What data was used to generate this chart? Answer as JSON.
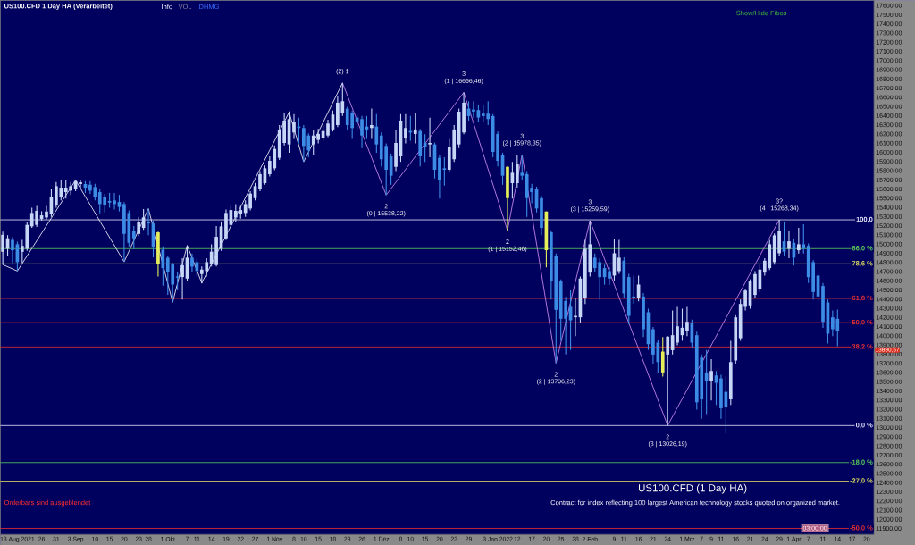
{
  "chart_data": {
    "type": "candlestick",
    "title": "US100.CFD 1 Day HA (Verarbeitet)",
    "subtitle": "US100.CFD (1 Day HA)",
    "categories": [
      null,
      null,
      null,
      "13 Aug 2021",
      null,
      null,
      null,
      null,
      "26",
      null,
      null,
      "31",
      null,
      null,
      null,
      "3 Sep",
      null,
      null,
      null,
      "10",
      null,
      null,
      "15",
      null,
      null,
      "20",
      null,
      null,
      "23",
      null,
      "28",
      null,
      null,
      null,
      "1 Okt",
      null,
      null,
      null,
      "7",
      null,
      "11",
      null,
      null,
      "14",
      null,
      null,
      "19",
      null,
      null,
      "22",
      null,
      null,
      "27",
      null,
      null,
      null,
      "1 Nov",
      null,
      null,
      null,
      "8",
      null,
      "10",
      null,
      null,
      "15",
      null,
      null,
      "18",
      null,
      null,
      "23",
      null,
      null,
      "26",
      null,
      null,
      null,
      "1 Dez",
      null,
      null,
      null,
      "8",
      null,
      "10",
      null,
      null,
      "15",
      null,
      null,
      "20",
      null,
      null,
      "23",
      null,
      null,
      "29",
      null,
      null,
      null,
      null,
      null,
      "3 Jan 2022",
      null,
      null,
      null,
      "12",
      null,
      null,
      "17",
      null,
      null,
      "20",
      null,
      null,
      "25",
      null,
      null,
      "28",
      null,
      null,
      "2 Feb",
      null,
      null,
      null,
      null,
      "9",
      null,
      "11",
      null,
      null,
      "16",
      null,
      null,
      "21",
      null,
      null,
      "24",
      null,
      null,
      null,
      "1 Mrz",
      null,
      null,
      "7",
      null,
      "9",
      null,
      "11",
      null,
      null,
      "16",
      null,
      null,
      "21",
      null,
      null,
      "24",
      null,
      null,
      "29",
      null,
      null,
      "1 Apr",
      null,
      null,
      "7",
      null,
      null,
      "11",
      null,
      null,
      "14",
      null,
      null,
      "17",
      null,
      null,
      "20",
      null
    ],
    "ohlc": [
      [
        14920,
        15140,
        14780,
        15105
      ],
      [
        14953,
        15100,
        14870,
        15067
      ],
      [
        15050,
        15080,
        14800,
        14937
      ],
      [
        15002,
        15030,
        14713,
        14807
      ],
      [
        14920,
        15050,
        14800,
        14985
      ],
      [
        14953,
        15250,
        14930,
        15213
      ],
      [
        15197,
        15400,
        15180,
        15343
      ],
      [
        15213,
        15420,
        15190,
        15366
      ],
      [
        15278,
        15360,
        15260,
        15317
      ],
      [
        15294,
        15420,
        15270,
        15359
      ],
      [
        15327,
        15600,
        15300,
        15521
      ],
      [
        15424,
        15680,
        15400,
        15635
      ],
      [
        15522,
        15700,
        15480,
        15619
      ],
      [
        15570,
        15700,
        15500,
        15619
      ],
      [
        15586,
        15680,
        15540,
        15635
      ],
      [
        15609,
        15697,
        15580,
        15690
      ],
      [
        15658,
        15700,
        15600,
        15677
      ],
      [
        15658,
        15690,
        15560,
        15619
      ],
      [
        15651,
        15690,
        15550,
        15586
      ],
      [
        15625,
        15660,
        15480,
        15521
      ],
      [
        15570,
        15600,
        15340,
        15440
      ],
      [
        15521,
        15550,
        15350,
        15430
      ],
      [
        15473,
        15560,
        15400,
        15456
      ],
      [
        15480,
        15560,
        15380,
        15440
      ],
      [
        15463,
        15540,
        15360,
        15408
      ],
      [
        15440,
        15460,
        14810,
        15115
      ],
      [
        15343,
        15370,
        14980,
        15018
      ],
      [
        15148,
        15200,
        14950,
        15067
      ],
      [
        15115,
        15300,
        15090,
        15245
      ],
      [
        15180,
        15385,
        15160,
        15294
      ],
      [
        15245,
        15385,
        15100,
        15229
      ],
      [
        15229,
        15260,
        14860,
        14969
      ],
      [
        15132,
        15140,
        14650,
        14790
      ],
      [
        14943,
        14980,
        14550,
        14742
      ],
      [
        14855,
        14880,
        14450,
        14703
      ],
      [
        14781,
        14800,
        14372,
        14563
      ],
      [
        14651,
        14700,
        14500,
        14638
      ],
      [
        14645,
        14850,
        14400,
        14774
      ],
      [
        14628,
        14986,
        14600,
        14856
      ],
      [
        14856,
        14900,
        14700,
        14758
      ],
      [
        14807,
        14850,
        14650,
        14710
      ],
      [
        14677,
        14760,
        14576,
        14726
      ],
      [
        14710,
        14850,
        14650,
        14807
      ],
      [
        14791,
        15000,
        14760,
        14921
      ],
      [
        14775,
        15200,
        14760,
        15083
      ],
      [
        14953,
        15250,
        14930,
        15197
      ],
      [
        15067,
        15380,
        15050,
        15343
      ],
      [
        15213,
        15420,
        15190,
        15375
      ],
      [
        15294,
        15440,
        15250,
        15366
      ],
      [
        15327,
        15420,
        15280,
        15375
      ],
      [
        15343,
        15480,
        15300,
        15440
      ],
      [
        15392,
        15580,
        15370,
        15554
      ],
      [
        15505,
        15670,
        15480,
        15635
      ],
      [
        15603,
        15800,
        15580,
        15765
      ],
      [
        15668,
        15860,
        15650,
        15830
      ],
      [
        15765,
        15960,
        15740,
        15911
      ],
      [
        15830,
        16080,
        15810,
        16041
      ],
      [
        15944,
        16300,
        15920,
        16252
      ],
      [
        16106,
        16438,
        16080,
        16350
      ],
      [
        16090,
        16450,
        16000,
        16366
      ],
      [
        16220,
        16420,
        16150,
        16334
      ],
      [
        16285,
        16380,
        16100,
        16269
      ],
      [
        16269,
        16300,
        15902,
        16074
      ],
      [
        16187,
        16210,
        15950,
        16025
      ],
      [
        16090,
        16250,
        15970,
        16187
      ],
      [
        16139,
        16260,
        16100,
        16204
      ],
      [
        16155,
        16290,
        16130,
        16236
      ],
      [
        16187,
        16360,
        16170,
        16317
      ],
      [
        16253,
        16460,
        16230,
        16415
      ],
      [
        16301,
        16620,
        16280,
        16545
      ],
      [
        16431,
        16760,
        16400,
        16561
      ],
      [
        16480,
        16500,
        16250,
        16301
      ],
      [
        16431,
        16460,
        16150,
        16269
      ],
      [
        16383,
        16420,
        16250,
        16334
      ],
      [
        16366,
        16400,
        16050,
        16187
      ],
      [
        16285,
        16400,
        16150,
        16253
      ],
      [
        16269,
        16480,
        16150,
        16301
      ],
      [
        16285,
        16420,
        16000,
        16090
      ],
      [
        16187,
        16220,
        15850,
        15928
      ],
      [
        16074,
        16100,
        15538.22,
        15814
      ],
      [
        15960,
        15990,
        15650,
        15749
      ],
      [
        15846,
        16250,
        15800,
        16106
      ],
      [
        15960,
        16420,
        15900,
        16350
      ],
      [
        16155,
        16420,
        16100,
        16269
      ],
      [
        16236,
        16400,
        16130,
        16220
      ],
      [
        16204,
        16430,
        16100,
        16253
      ],
      [
        16236,
        16260,
        15850,
        15960
      ],
      [
        16106,
        16200,
        15900,
        16058
      ],
      [
        16090,
        16380,
        15950,
        16106
      ],
      [
        16090,
        16110,
        15720,
        15814
      ],
      [
        15944,
        15970,
        15500,
        15700
      ],
      [
        15830,
        15950,
        15640,
        15814
      ],
      [
        15814,
        16150,
        15790,
        16058
      ],
      [
        15928,
        16300,
        15900,
        16253
      ],
      [
        16090,
        16480,
        16050,
        16447
      ],
      [
        16220,
        16656.46,
        16200,
        16545
      ],
      [
        16480,
        16560,
        16350,
        16399
      ],
      [
        16470,
        16560,
        16380,
        16448
      ],
      [
        16464,
        16520,
        16330,
        16383
      ],
      [
        16425,
        16520,
        16330,
        16399
      ],
      [
        16425,
        16560,
        16300,
        16366
      ],
      [
        16399,
        16420,
        15950,
        16009
      ],
      [
        16204,
        16230,
        15850,
        15911
      ],
      [
        15976,
        16000,
        15650,
        15749
      ],
      [
        15846,
        15850,
        15152.46,
        15505
      ],
      [
        15668,
        15900,
        15500,
        15781
      ],
      [
        15668,
        15980,
        15620,
        15879
      ],
      [
        15781,
        15978.35,
        15700,
        15749
      ],
      [
        15765,
        15800,
        15300,
        15505
      ],
      [
        15619,
        15660,
        15450,
        15570
      ],
      [
        15603,
        15630,
        15350,
        15392
      ],
      [
        15505,
        15530,
        15100,
        15180
      ],
      [
        15359,
        15359,
        14750,
        14937
      ],
      [
        15132,
        15150,
        14400,
        14596
      ],
      [
        14872,
        14900,
        13706.23,
        14287
      ],
      [
        14596,
        14620,
        13950,
        14190
      ],
      [
        14384,
        14430,
        13800,
        14190
      ],
      [
        14320,
        14500,
        13850,
        14173
      ],
      [
        14206,
        14420,
        14000,
        14222
      ],
      [
        14206,
        14650,
        14150,
        14628
      ],
      [
        14417,
        15050,
        14350,
        14953
      ],
      [
        14693,
        15259.59,
        14650,
        15002
      ],
      [
        14856,
        14900,
        14700,
        14742
      ],
      [
        14807,
        14850,
        14400,
        14644
      ],
      [
        14742,
        14780,
        14560,
        14644
      ],
      [
        14709,
        14750,
        14560,
        14628
      ],
      [
        14661,
        15060,
        14600,
        14904
      ],
      [
        14709,
        15050,
        14680,
        14856
      ],
      [
        14823,
        14860,
        14420,
        14466
      ],
      [
        14644,
        14680,
        14130,
        14222
      ],
      [
        14433,
        14660,
        14350,
        14417
      ],
      [
        14417,
        14660,
        14380,
        14563
      ],
      [
        14433,
        14470,
        13990,
        14076
      ],
      [
        14261,
        14300,
        13850,
        13913
      ],
      [
        14076,
        14100,
        13700,
        13800
      ],
      [
        13930,
        13960,
        13600,
        13718
      ],
      [
        13832,
        13990,
        13560,
        13605
      ],
      [
        13800,
        14000,
        13026.19,
        13995
      ],
      [
        13848,
        14280,
        13800,
        14011
      ],
      [
        13930,
        14320,
        13900,
        14108
      ],
      [
        14011,
        14300,
        13950,
        14092
      ],
      [
        14060,
        14320,
        14000,
        14157
      ],
      [
        14141,
        14180,
        13880,
        13930
      ],
      [
        14011,
        14050,
        13200,
        13280
      ],
      [
        13767,
        13800,
        13100,
        13312
      ],
      [
        13605,
        13850,
        13150,
        13507
      ],
      [
        13507,
        13750,
        13300,
        13621
      ],
      [
        13572,
        13620,
        13250,
        13491
      ],
      [
        13540,
        13580,
        13100,
        13215
      ],
      [
        13394,
        13560,
        12940,
        13231
      ],
      [
        13312,
        13950,
        13250,
        13718
      ],
      [
        13735,
        14230,
        13700,
        14206
      ],
      [
        13978,
        14400,
        13950,
        14352
      ],
      [
        14320,
        14520,
        14280,
        14498
      ],
      [
        14336,
        14620,
        14300,
        14596
      ],
      [
        14450,
        14710,
        14420,
        14677
      ],
      [
        14514,
        14780,
        14480,
        14726
      ],
      [
        14693,
        14850,
        14660,
        14823
      ],
      [
        14742,
        15050,
        14720,
        15002
      ],
      [
        14807,
        15120,
        14780,
        15099
      ],
      [
        14904,
        15268.34,
        14880,
        15148
      ],
      [
        15034,
        15250,
        14880,
        14921
      ],
      [
        14953,
        15150,
        14850,
        15034
      ],
      [
        15018,
        15060,
        14770,
        14856
      ],
      [
        14937,
        15180,
        14900,
        15002
      ],
      [
        15002,
        15220,
        14900,
        14953
      ],
      [
        14985,
        15010,
        14580,
        14644
      ],
      [
        14807,
        14830,
        14400,
        14482
      ],
      [
        14661,
        14690,
        14370,
        14433
      ],
      [
        14547,
        14580,
        14090,
        14157
      ],
      [
        14368,
        14400,
        13920,
        14027
      ],
      [
        14206,
        14280,
        14000,
        14076
      ],
      [
        14190,
        14290,
        13890,
        14060
      ],
      null,
      null,
      null,
      null,
      null,
      null,
      null
    ],
    "colors": [
      "#c6d6f6",
      "#c6d6f6",
      "#3c8ce6",
      "#3c8ce6",
      "#c6d6f6",
      "#c6d6f6",
      "#c6d6f6",
      "#c6d6f6",
      "#c6d6f6",
      "#c6d6f6",
      "#c6d6f6",
      "#c6d6f6",
      "#c6d6f6",
      "#c6d6f6",
      "#c6d6f6",
      "#c6d6f6",
      "#c6d6f6",
      "#3c8ce6",
      "#3c8ce6",
      "#3c8ce6",
      "#3c8ce6",
      "#3c8ce6",
      "#3c8ce6",
      "#3c8ce6",
      "#3c8ce6",
      "#3c8ce6",
      "#3c8ce6",
      "#3c8ce6",
      "#c6d6f6",
      "#c6d6f6",
      "#3c8ce6",
      "#3c8ce6",
      "#e6ee5a",
      "#3c8ce6",
      "#3c8ce6",
      "#3c8ce6",
      "#3c8ce6",
      "#c6d6f6",
      "#c6d6f6",
      "#3c8ce6",
      "#3c8ce6",
      "#c6d6f6",
      "#c6d6f6",
      "#c6d6f6",
      "#c6d6f6",
      "#c6d6f6",
      "#c6d6f6",
      "#c6d6f6",
      "#c6d6f6",
      "#c6d6f6",
      "#c6d6f6",
      "#c6d6f6",
      "#c6d6f6",
      "#c6d6f6",
      "#c6d6f6",
      "#c6d6f6",
      "#c6d6f6",
      "#c6d6f6",
      "#c6d6f6",
      "#c6d6f6",
      "#c6d6f6",
      "#3c8ce6",
      "#3c8ce6",
      "#3c8ce6",
      "#c6d6f6",
      "#c6d6f6",
      "#c6d6f6",
      "#c6d6f6",
      "#c6d6f6",
      "#c6d6f6",
      "#c6d6f6",
      "#3c8ce6",
      "#3c8ce6",
      "#3c8ce6",
      "#3c8ce6",
      "#3c8ce6",
      "#c6d6f6",
      "#3c8ce6",
      "#3c8ce6",
      "#3c8ce6",
      "#3c8ce6",
      "#c6d6f6",
      "#c6d6f6",
      "#c6d6f6",
      "#3c8ce6",
      "#c6d6f6",
      "#3c8ce6",
      "#3c8ce6",
      "#c6d6f6",
      "#3c8ce6",
      "#3c8ce6",
      "#3c8ce6",
      "#c6d6f6",
      "#c6d6f6",
      "#c6d6f6",
      "#c6d6f6",
      "#3c8ce6",
      "#3c8ce6",
      "#3c8ce6",
      "#3c8ce6",
      "#3c8ce6",
      "#3c8ce6",
      "#3c8ce6",
      "#3c8ce6",
      "#e6ee5a",
      "#c6d6f6",
      "#c6d6f6",
      "#3c8ce6",
      "#3c8ce6",
      "#3c8ce6",
      "#3c8ce6",
      "#3c8ce6",
      "#e6ee5a",
      "#3c8ce6",
      "#3c8ce6",
      "#3c8ce6",
      "#3c8ce6",
      "#3c8ce6",
      "#c6d6f6",
      "#c6d6f6",
      "#c6d6f6",
      "#c6d6f6",
      "#3c8ce6",
      "#3c8ce6",
      "#3c8ce6",
      "#3c8ce6",
      "#c6d6f6",
      "#c6d6f6",
      "#3c8ce6",
      "#3c8ce6",
      "#3c8ce6",
      "#c6d6f6",
      "#3c8ce6",
      "#3c8ce6",
      "#3c8ce6",
      "#3c8ce6",
      "#e6ee5a",
      "#c6d6f6",
      "#c6d6f6",
      "#c6d6f6",
      "#c6d6f6",
      "#c6d6f6",
      "#3c8ce6",
      "#3c8ce6",
      "#3c8ce6",
      "#3c8ce6",
      "#c6d6f6",
      "#3c8ce6",
      "#3c8ce6",
      "#3c8ce6",
      "#c6d6f6",
      "#c6d6f6",
      "#c6d6f6",
      "#c6d6f6",
      "#c6d6f6",
      "#c6d6f6",
      "#c6d6f6",
      "#c6d6f6",
      "#c6d6f6",
      "#c6d6f6",
      "#c6d6f6",
      "#3c8ce6",
      "#c6d6f6",
      "#3c8ce6",
      "#c6d6f6",
      "#3c8ce6",
      "#3c8ce6",
      "#3c8ce6",
      "#3c8ce6",
      "#3c8ce6",
      "#3c8ce6",
      "#3c8ce6",
      "#3c8ce6",
      null,
      null,
      null,
      null,
      null,
      null,
      null
    ],
    "series": [
      {
        "type": "line",
        "color": "#e4e4f4",
        "values": [
          14780,
          null,
          null,
          14710,
          null,
          null,
          null,
          null,
          null,
          null,
          null,
          null,
          null,
          null,
          null,
          15700,
          null,
          null,
          null,
          null,
          null,
          null,
          null,
          null,
          null,
          14810,
          null,
          null,
          null,
          null,
          15390,
          null,
          null,
          null,
          null,
          14370,
          null,
          null,
          14990,
          null,
          null,
          14580,
          null,
          null,
          null,
          null,
          null,
          null,
          null,
          null,
          null,
          null,
          null,
          null,
          null,
          null,
          null,
          null,
          null,
          16440,
          null,
          null,
          15900,
          null,
          null,
          null,
          null,
          null,
          null,
          null,
          16760,
          null,
          null,
          null,
          null,
          null,
          null,
          null,
          null,
          null,
          null,
          null,
          null,
          null,
          null,
          null,
          null,
          null,
          null,
          null,
          null,
          null,
          null,
          null,
          null,
          null,
          null,
          null,
          null,
          null,
          null,
          null,
          null,
          null,
          null,
          null,
          null,
          null,
          null,
          null,
          null,
          null,
          null,
          null,
          null,
          null,
          null,
          null,
          null,
          null,
          null,
          null,
          null,
          null,
          null,
          null,
          null,
          null,
          null,
          null,
          null,
          null,
          null,
          null,
          null,
          null,
          null,
          null,
          null,
          null,
          null,
          null,
          null,
          null,
          null,
          null,
          null,
          null,
          null,
          null,
          null,
          null,
          null,
          null,
          null,
          null,
          null,
          null,
          null,
          null,
          null,
          null,
          null,
          null,
          null,
          null,
          null,
          null,
          null,
          null,
          null,
          null,
          null,
          null,
          null,
          null,
          null,
          null,
          null,
          null
        ]
      },
      {
        "type": "line",
        "color": "#c384e6",
        "values": [
          null,
          null,
          null,
          null,
          null,
          null,
          null,
          null,
          null,
          null,
          null,
          null,
          null,
          null,
          null,
          null,
          null,
          null,
          null,
          null,
          null,
          null,
          null,
          null,
          null,
          null,
          null,
          null,
          null,
          null,
          null,
          null,
          null,
          null,
          null,
          null,
          null,
          null,
          null,
          null,
          null,
          null,
          null,
          null,
          null,
          null,
          null,
          null,
          null,
          null,
          null,
          null,
          null,
          null,
          null,
          null,
          null,
          null,
          null,
          null,
          null,
          null,
          null,
          null,
          null,
          null,
          null,
          null,
          null,
          null,
          16760,
          null,
          null,
          null,
          null,
          null,
          null,
          null,
          null,
          15538.22,
          null,
          null,
          null,
          null,
          null,
          null,
          null,
          null,
          null,
          null,
          null,
          null,
          null,
          null,
          null,
          16656.46,
          null,
          null,
          null,
          null,
          null,
          null,
          null,
          null,
          15152.46,
          null,
          null,
          15978.35,
          null,
          null,
          null,
          null,
          null,
          null,
          13706.23,
          null,
          null,
          null,
          null,
          null,
          null,
          15259.59,
          null,
          null,
          null,
          null,
          null,
          null,
          null,
          null,
          null,
          null,
          null,
          null,
          null,
          null,
          null,
          13026.19,
          null,
          null,
          null,
          null,
          null,
          null,
          null,
          null,
          null,
          null,
          null,
          null,
          null,
          null,
          null,
          null,
          null,
          null,
          null,
          null,
          null,
          null,
          15268.34,
          null,
          null,
          null,
          null,
          null,
          null,
          null,
          null,
          null,
          null,
          null,
          null,
          null,
          null,
          null,
          null,
          null,
          null,
          null
        ]
      }
    ],
    "ylim": [
      11840,
      17660
    ],
    "yticks": [
      {
        "value": 11900,
        "label": "11900,00"
      },
      {
        "value": 12000,
        "label": "12000,00"
      },
      {
        "value": 12100,
        "label": "12100,00"
      },
      {
        "value": 12200,
        "label": "12200,00"
      },
      {
        "value": 12300,
        "label": "12300,00"
      },
      {
        "value": 12400,
        "label": "12400,00"
      },
      {
        "value": 12500,
        "label": "12500,00"
      },
      {
        "value": 12600,
        "label": "12600,00"
      },
      {
        "value": 12700,
        "label": "12700,00"
      },
      {
        "value": 12800,
        "label": "12800,00"
      },
      {
        "value": 12900,
        "label": "12900,00"
      },
      {
        "value": 13000,
        "label": "13000,00"
      },
      {
        "value": 13100,
        "label": "13100,00"
      },
      {
        "value": 13200,
        "label": "13200,00"
      },
      {
        "value": 13300,
        "label": "13300,00"
      },
      {
        "value": 13400,
        "label": "13400,00"
      },
      {
        "value": 13500,
        "label": "13500,00"
      },
      {
        "value": 13600,
        "label": "13600,00"
      },
      {
        "value": 13700,
        "label": "13700,00"
      },
      {
        "value": 13800,
        "label": "13800,00"
      },
      {
        "value": 13900,
        "label": "13900,00"
      },
      {
        "value": 14000,
        "label": "14000,00"
      },
      {
        "value": 14100,
        "label": "14100,00"
      },
      {
        "value": 14200,
        "label": "14200,00"
      },
      {
        "value": 14300,
        "label": "14300,00"
      },
      {
        "value": 14400,
        "label": "14400,00"
      },
      {
        "value": 14500,
        "label": "14500,00"
      },
      {
        "value": 14600,
        "label": "14600,00"
      },
      {
        "value": 14700,
        "label": "14700,00"
      },
      {
        "value": 14800,
        "label": "14800,00"
      },
      {
        "value": 14900,
        "label": "14900,00"
      },
      {
        "value": 15000,
        "label": "15000,00"
      },
      {
        "value": 15100,
        "label": "15100,00"
      },
      {
        "value": 15200,
        "label": "15200,00"
      },
      {
        "value": 15300,
        "label": "15300,00"
      },
      {
        "value": 15400,
        "label": "15400,00"
      },
      {
        "value": 15500,
        "label": "15500,00"
      },
      {
        "value": 15600,
        "label": "15600,00"
      },
      {
        "value": 15700,
        "label": "15700,00"
      },
      {
        "value": 15800,
        "label": "15800,00"
      },
      {
        "value": 15900,
        "label": "15900,00"
      },
      {
        "value": 16000,
        "label": "16000,00"
      },
      {
        "value": 16100,
        "label": "16100,00"
      },
      {
        "value": 16200,
        "label": "16200,00"
      },
      {
        "value": 16300,
        "label": "16300,00"
      },
      {
        "value": 16400,
        "label": "16400,00"
      },
      {
        "value": 16500,
        "label": "16500,00"
      },
      {
        "value": 16600,
        "label": "16600,00"
      },
      {
        "value": 16700,
        "label": "16700,00"
      },
      {
        "value": 16800,
        "label": "16800,00"
      },
      {
        "value": 16900,
        "label": "16900,00"
      },
      {
        "value": 17000,
        "label": "17000,00"
      },
      {
        "value": 17100,
        "label": "17100,00"
      },
      {
        "value": 17200,
        "label": "17200,00"
      },
      {
        "value": 17300,
        "label": "17300,00"
      },
      {
        "value": 17400,
        "label": "17400,00"
      },
      {
        "value": 17500,
        "label": "17500,00"
      },
      {
        "value": 17600,
        "label": "17600,00"
      }
    ],
    "ref_lines": [
      {
        "axis": "y",
        "value": 15268.34,
        "color": "#e8e8ff"
      },
      {
        "axis": "y",
        "value": 14954.44,
        "color": "#58d058"
      },
      {
        "axis": "y",
        "value": 14788.52,
        "color": "#e0e060"
      },
      {
        "axis": "y",
        "value": 14411.84,
        "color": "#e83030"
      },
      {
        "axis": "y",
        "value": 14147.27,
        "color": "#e83030"
      },
      {
        "axis": "y",
        "value": 13882.69,
        "color": "#e83030"
      },
      {
        "axis": "y",
        "value": 13026.19,
        "color": "#e8e8ff"
      },
      {
        "axis": "y",
        "value": 12622.6,
        "color": "#58d058"
      },
      {
        "axis": "y",
        "value": 12420.81,
        "color": "#e0e060"
      },
      {
        "axis": "y",
        "value": 11905.12,
        "color": "#e83030"
      }
    ],
    "annotations": [
      "(2) 1",
      "3",
      "(1 | 16656,46)",
      "2",
      "(0 | 15538,22)",
      "2",
      "(1 | 15152,46)",
      "3",
      "(2 | 15978,35)",
      "2",
      "(2 | 13706,23)",
      "3",
      "(3 | 15259,59)",
      "2",
      "(3 | 13026,19)",
      "3?",
      "(4 | 15268,34)",
      "Info",
      "VOL",
      "DHMG",
      "Show/Hide Fibos",
      "Orderbars sind ausgeblendet",
      "Contract for index reflecting 100 largest American technology stocks quoted on organized market.",
      "13890,57",
      "03:00:00",
      "100,0",
      "86,0 %",
      "78,6 %",
      "61,8 %",
      "50,0 %",
      "38,2 %",
      "0,0 %",
      "-18,0 %",
      "-27,0 %",
      "-50,0 %"
    ]
  }
}
